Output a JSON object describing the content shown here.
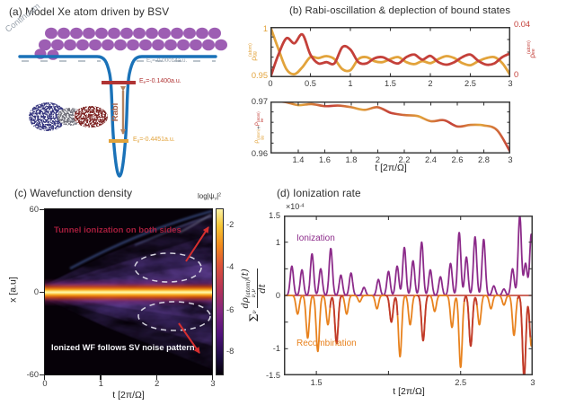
{
  "panel_a": {
    "title": "(a) Model Xe atom driven by BSV",
    "continuum_label": "Continuum",
    "rabi_label": "Rabi",
    "level_continuum": {
      "base": "E",
      "sub": "ν",
      "rest": "=-0.00014a.u."
    },
    "level_excited": {
      "base": "E",
      "sub": "e",
      "rest": "=-0.1400a.u."
    },
    "level_ground": {
      "base": "E",
      "sub": "g",
      "rest": "=-0.4451a.u."
    }
  },
  "colors": {
    "atom_purple": "#9d5eb3",
    "potential_blue": "#1a72b8",
    "excited_red": "#b03434",
    "ground_orange": "#e2a33b",
    "rabi_tan": "#b5835f",
    "series_orange": "#e2a33b",
    "series_red": "#c4403a",
    "ionization_purple": "#8c2b8a",
    "recombination_orange": "#e8821e",
    "deep_red": "#c0392b",
    "axis_dark": "#3a3a3a"
  },
  "chart_data": [
    {
      "id": "b_top",
      "type": "line",
      "title": "(b) Rabi-oscillation & deplection of bound states",
      "x": [
        0,
        0.1,
        0.2,
        0.3,
        0.4,
        0.5,
        0.6,
        0.7,
        0.8,
        0.9,
        1,
        1.1,
        1.2,
        1.3,
        1.4,
        1.5,
        1.6,
        1.7,
        1.8,
        1.9,
        2,
        2.1,
        2.2,
        2.3,
        2.4,
        2.5,
        2.6,
        2.7,
        2.8,
        2.9,
        3
      ],
      "series": [
        {
          "name": "rho_gg_atom",
          "axis": "left",
          "color": "#e2a33b",
          "label": {
            "base": "ρ",
            "sub": "gg",
            "sup": "(atom)"
          },
          "values": [
            1.0,
            0.978,
            0.958,
            0.953,
            0.96,
            0.97,
            0.969,
            0.971,
            0.968,
            0.958,
            0.957,
            0.968,
            0.97,
            0.966,
            0.965,
            0.968,
            0.97,
            0.965,
            0.963,
            0.966,
            0.964,
            0.968,
            0.971,
            0.969,
            0.964,
            0.962,
            0.966,
            0.969,
            0.97,
            0.964,
            0.952
          ]
        },
        {
          "name": "rho_ee_atom",
          "axis": "right",
          "color": "#c4403a",
          "label": {
            "base": "ρ",
            "sub": "ee",
            "sup": "(atom)"
          },
          "values": [
            0.0,
            0.018,
            0.031,
            0.027,
            0.034,
            0.018,
            0.011,
            0.012,
            0.011,
            0.024,
            0.022,
            0.012,
            0.011,
            0.015,
            0.016,
            0.013,
            0.011,
            0.016,
            0.018,
            0.014,
            0.017,
            0.012,
            0.01,
            0.012,
            0.016,
            0.018,
            0.013,
            0.01,
            0.011,
            0.016,
            0.019
          ]
        }
      ],
      "xlim": [
        0,
        3
      ],
      "xticks": [
        0,
        0.5,
        1,
        1.5,
        2,
        2.5,
        3
      ],
      "left_ylim": [
        0.95,
        1
      ],
      "left_ytick_labels": [
        "1",
        "0.95"
      ],
      "right_ylim": [
        0,
        0.04
      ],
      "right_ytick_labels": [
        "0.04",
        "0"
      ]
    },
    {
      "id": "b_bottom",
      "type": "line",
      "x": [
        1.19,
        1.3,
        1.4,
        1.5,
        1.6,
        1.7,
        1.8,
        1.9,
        2,
        2.1,
        2.2,
        2.3,
        2.4,
        2.5,
        2.6,
        2.7,
        2.8,
        2.9,
        3
      ],
      "series": [
        {
          "name": "rho_gg_plus_rho_ee",
          "color_pattern": [
            "#c4403a",
            "#e2a33b"
          ],
          "values": [
            0.9701,
            0.9699,
            0.9693,
            0.9695,
            0.9691,
            0.9692,
            0.9689,
            0.9684,
            0.9689,
            0.9678,
            0.9674,
            0.9672,
            0.9662,
            0.9664,
            0.9652,
            0.9655,
            0.9654,
            0.9645,
            0.9603
          ]
        }
      ],
      "ylabel_parts": {
        "first": {
          "base": "ρ",
          "sub": "gg",
          "sup": "(atom)"
        },
        "plus": "+",
        "second": {
          "base": "ρ",
          "sub": "ee",
          "sup": "(atom)"
        }
      },
      "xlim": [
        1.19,
        3
      ],
      "xticks": [
        1.4,
        1.6,
        1.8,
        2,
        2.2,
        2.4,
        2.6,
        2.8,
        3
      ],
      "ylim": [
        0.96,
        0.97
      ],
      "ytick_labels": [
        "0.97",
        "0.96"
      ],
      "xlabel": "t [2π/Ω]"
    },
    {
      "id": "c",
      "type": "heatmap",
      "title": "(c) Wavefunction density",
      "xlabel": "t [2π/Ω]",
      "ylabel": "x [a.u]",
      "xlim": [
        0,
        3
      ],
      "ylim": [
        -60,
        60
      ],
      "xticks": [
        0,
        1,
        2,
        3
      ],
      "yticks": [
        60,
        0,
        -60
      ],
      "colorbar": {
        "label_parts": {
          "prefix": "log|ψ",
          "sub": "ν",
          "mid": "|",
          "sup": "2"
        },
        "ticks": [
          "-2",
          "-4",
          "-6",
          "-8"
        ]
      },
      "annotations": {
        "top": "Tunnel ionization on both sides",
        "bottom": "Ionized WF follows SV noise pattern"
      },
      "description": "bright bound-state density band at x=0; purple ionized wavefunction fan spreading with time following the SV noise pattern"
    },
    {
      "id": "d",
      "type": "line",
      "title": "(d) Ionization rate",
      "scale": {
        "base": "×10",
        "exp": "-4"
      },
      "ylim": [
        -1.5,
        1.5
      ],
      "yticks": [
        {
          "v": 1.5,
          "label": "1.5"
        },
        {
          "v": 1,
          "label": "1"
        },
        {
          "v": 0.5,
          "label": ""
        },
        {
          "v": 0,
          "label": "0"
        },
        {
          "v": -0.5,
          "label": ""
        },
        {
          "v": -1,
          "label": "-1"
        },
        {
          "v": -1.5,
          "label": "-1.5"
        }
      ],
      "xlim": [
        1.275,
        3
      ],
      "xticks": [
        {
          "t": 1.5,
          "label": "1.5"
        },
        {
          "t": 2,
          "label": ""
        },
        {
          "t": 2.5,
          "label": "2.5"
        },
        {
          "t": 3,
          "label": "3"
        }
      ],
      "xlabel": "t [2π/Ω]",
      "ylabel_parts": {
        "sigma": "Σ",
        "sigma_sub": "ν",
        "num_d": "dρ",
        "num_sub": "ν,ν",
        "num_sup": "(atom)",
        "num_arg": "(t)",
        "den": "dt"
      },
      "series": [
        {
          "name": "Ionization",
          "color": "#8c2b8a",
          "spike_width": 0.016,
          "spikes": [
            [
              1.33,
              0.55
            ],
            [
              1.4,
              0.48
            ],
            [
              1.47,
              0.78
            ],
            [
              1.53,
              0.5
            ],
            [
              1.6,
              0.88
            ],
            [
              1.67,
              0.38
            ],
            [
              1.74,
              0.42
            ],
            [
              1.83,
              0.15
            ],
            [
              1.93,
              0.3
            ],
            [
              2.0,
              0.45
            ],
            [
              2.06,
              0.55
            ],
            [
              2.11,
              0.9
            ],
            [
              2.17,
              0.65
            ],
            [
              2.23,
              1.0
            ],
            [
              2.29,
              0.48
            ],
            [
              2.36,
              0.35
            ],
            [
              2.43,
              0.6
            ],
            [
              2.49,
              1.18
            ],
            [
              2.54,
              0.72
            ],
            [
              2.6,
              1.1
            ],
            [
              2.66,
              1.05
            ],
            [
              2.73,
              0.18
            ],
            [
              2.8,
              0.12
            ],
            [
              2.86,
              0.5
            ],
            [
              2.91,
              1.5
            ],
            [
              2.95,
              0.6
            ],
            [
              2.99,
              1.15
            ]
          ]
        },
        {
          "name": "Recombination",
          "color": "#e8821e",
          "spike_width": 0.016,
          "spikes": [
            [
              1.37,
              -0.35,
              0
            ],
            [
              1.44,
              -0.8,
              0
            ],
            [
              1.51,
              -1.05,
              0
            ],
            [
              1.58,
              -0.55,
              0
            ],
            [
              1.64,
              -0.9,
              1
            ],
            [
              1.71,
              -0.35,
              0
            ],
            [
              1.8,
              -0.12,
              0
            ],
            [
              1.92,
              -0.25,
              0
            ],
            [
              2.02,
              -0.5,
              1
            ],
            [
              2.08,
              -1.15,
              0
            ],
            [
              2.15,
              -0.55,
              0
            ],
            [
              2.24,
              -0.85,
              1
            ],
            [
              2.32,
              -0.3,
              0
            ],
            [
              2.44,
              -0.6,
              0
            ],
            [
              2.5,
              -1.35,
              0
            ],
            [
              2.57,
              -0.95,
              1
            ],
            [
              2.63,
              -0.55,
              0
            ],
            [
              2.71,
              -0.25,
              0
            ],
            [
              2.8,
              -0.18,
              0
            ],
            [
              2.87,
              -0.75,
              0
            ],
            [
              2.94,
              -1.55,
              1
            ],
            [
              2.99,
              -0.95,
              0
            ]
          ]
        }
      ]
    }
  ]
}
